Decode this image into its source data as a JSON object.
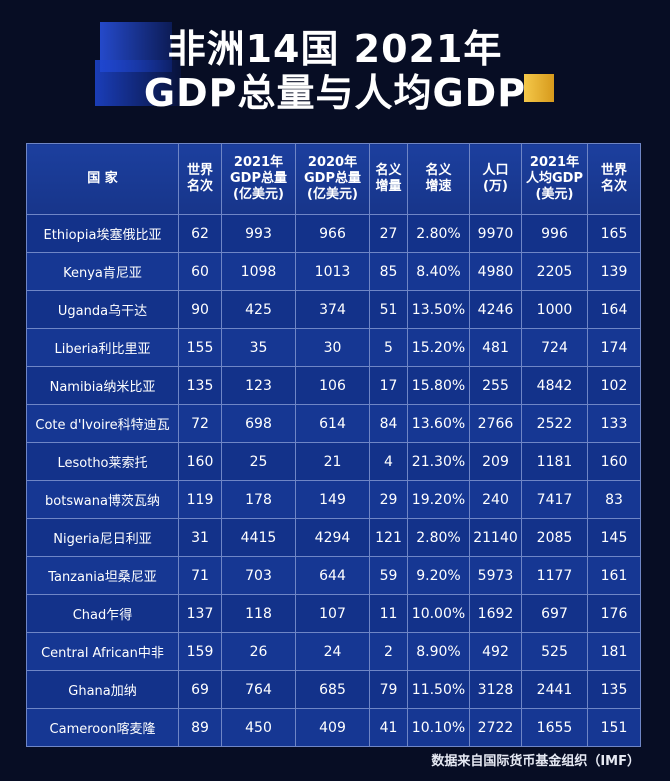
{
  "title": {
    "line1": "非洲14国  2021年",
    "line2": "GDP总量与人均GDP"
  },
  "table": {
    "headers": [
      [
        "国  家"
      ],
      [
        "世界",
        "名次"
      ],
      [
        "2021年",
        "GDP总量",
        "(亿美元)"
      ],
      [
        "2020年",
        "GDP总量",
        "(亿美元)"
      ],
      [
        "名义",
        "增量"
      ],
      [
        "名义",
        "增速"
      ],
      [
        "人口",
        "(万)"
      ],
      [
        "2021年",
        "人均GDP",
        "(美元)"
      ],
      [
        "世界",
        "名次"
      ]
    ],
    "rows": [
      [
        "Ethiopia埃塞俄比亚",
        "62",
        "993",
        "966",
        "27",
        "2.80%",
        "9970",
        "996",
        "165"
      ],
      [
        "Kenya肯尼亚",
        "60",
        "1098",
        "1013",
        "85",
        "8.40%",
        "4980",
        "2205",
        "139"
      ],
      [
        "Uganda乌干达",
        "90",
        "425",
        "374",
        "51",
        "13.50%",
        "4246",
        "1000",
        "164"
      ],
      [
        "Liberia利比里亚",
        "155",
        "35",
        "30",
        "5",
        "15.20%",
        "481",
        "724",
        "174"
      ],
      [
        "Namibia纳米比亚",
        "135",
        "123",
        "106",
        "17",
        "15.80%",
        "255",
        "4842",
        "102"
      ],
      [
        "Cote d'Ivoire科特迪瓦",
        "72",
        "698",
        "614",
        "84",
        "13.60%",
        "2766",
        "2522",
        "133"
      ],
      [
        "Lesotho莱索托",
        "160",
        "25",
        "21",
        "4",
        "21.30%",
        "209",
        "1181",
        "160"
      ],
      [
        "botswana博茨瓦纳",
        "119",
        "178",
        "149",
        "29",
        "19.20%",
        "240",
        "7417",
        "83"
      ],
      [
        "Nigeria尼日利亚",
        "31",
        "4415",
        "4294",
        "121",
        "2.80%",
        "21140",
        "2085",
        "145"
      ],
      [
        "Tanzania坦桑尼亚",
        "71",
        "703",
        "644",
        "59",
        "9.20%",
        "5973",
        "1177",
        "161"
      ],
      [
        "Chad乍得",
        "137",
        "118",
        "107",
        "11",
        "10.00%",
        "1692",
        "697",
        "176"
      ],
      [
        "Central African中非",
        "159",
        "26",
        "24",
        "2",
        "8.90%",
        "492",
        "525",
        "181"
      ],
      [
        "Ghana加纳",
        "69",
        "764",
        "685",
        "79",
        "11.50%",
        "3128",
        "2441",
        "135"
      ],
      [
        "Cameroon喀麦隆",
        "89",
        "450",
        "409",
        "41",
        "10.10%",
        "2722",
        "1655",
        "151"
      ]
    ]
  },
  "source": "数据来自国际货币基金组织（IMF）"
}
